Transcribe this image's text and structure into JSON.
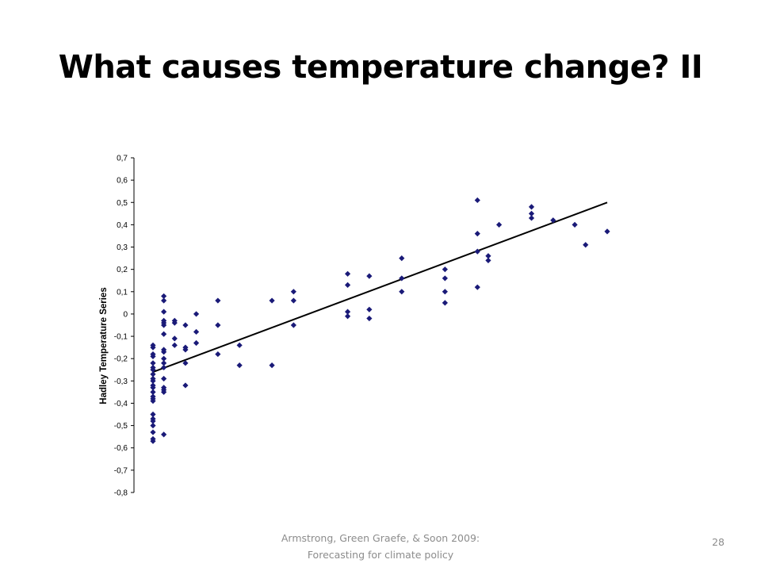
{
  "slide": {
    "title": "What causes temperature change? II",
    "footer_line1": "Armstrong, Green Graefe, & Soon 2009:",
    "footer_line2": "Forecasting for climate policy",
    "page_number": "28"
  },
  "chart_data": {
    "type": "scatter",
    "title": "",
    "xlabel": "",
    "ylabel": "Hadley Temperature Series",
    "ylim": [
      -0.8,
      0.7
    ],
    "yticks": [
      "0,7",
      "0,6",
      "0,5",
      "0,4",
      "0,3",
      "0,2",
      "0,1",
      "0",
      "-0,1",
      "-0,2",
      "-0,3",
      "-0,4",
      "-0,5",
      "-0,6",
      "-0,7",
      "-0,8"
    ],
    "grid": false,
    "legend": "none",
    "marker": "diamond",
    "marker_color": "#1a1a78",
    "trendline": {
      "x": [
        0,
        21
      ],
      "y": [
        -0.26,
        0.5
      ],
      "color": "#000000"
    },
    "points": [
      {
        "x": 0,
        "y": -0.14
      },
      {
        "x": 0,
        "y": -0.15
      },
      {
        "x": 0,
        "y": -0.18
      },
      {
        "x": 0,
        "y": -0.19
      },
      {
        "x": 0,
        "y": -0.22
      },
      {
        "x": 0,
        "y": -0.24
      },
      {
        "x": 0,
        "y": -0.25
      },
      {
        "x": 0,
        "y": -0.27
      },
      {
        "x": 0,
        "y": -0.29
      },
      {
        "x": 0,
        "y": -0.3
      },
      {
        "x": 0,
        "y": -0.32
      },
      {
        "x": 0,
        "y": -0.33
      },
      {
        "x": 0,
        "y": -0.35
      },
      {
        "x": 0,
        "y": -0.37
      },
      {
        "x": 0,
        "y": -0.38
      },
      {
        "x": 0,
        "y": -0.39
      },
      {
        "x": 0,
        "y": -0.45
      },
      {
        "x": 0,
        "y": -0.47
      },
      {
        "x": 0,
        "y": -0.48
      },
      {
        "x": 0,
        "y": -0.5
      },
      {
        "x": 0,
        "y": -0.53
      },
      {
        "x": 0,
        "y": -0.56
      },
      {
        "x": 0,
        "y": -0.57
      },
      {
        "x": 0.5,
        "y": 0.08
      },
      {
        "x": 0.5,
        "y": 0.06
      },
      {
        "x": 0.5,
        "y": 0.01
      },
      {
        "x": 0.5,
        "y": -0.03
      },
      {
        "x": 0.5,
        "y": -0.04
      },
      {
        "x": 0.5,
        "y": -0.05
      },
      {
        "x": 0.5,
        "y": -0.09
      },
      {
        "x": 0.5,
        "y": -0.16
      },
      {
        "x": 0.5,
        "y": -0.17
      },
      {
        "x": 0.5,
        "y": -0.2
      },
      {
        "x": 0.5,
        "y": -0.22
      },
      {
        "x": 0.5,
        "y": -0.24
      },
      {
        "x": 0.5,
        "y": -0.29
      },
      {
        "x": 0.5,
        "y": -0.33
      },
      {
        "x": 0.5,
        "y": -0.34
      },
      {
        "x": 0.5,
        "y": -0.35
      },
      {
        "x": 0.5,
        "y": -0.54
      },
      {
        "x": 1,
        "y": -0.03
      },
      {
        "x": 1,
        "y": -0.04
      },
      {
        "x": 1,
        "y": -0.11
      },
      {
        "x": 1,
        "y": -0.14
      },
      {
        "x": 1.5,
        "y": -0.05
      },
      {
        "x": 1.5,
        "y": -0.15
      },
      {
        "x": 1.5,
        "y": -0.16
      },
      {
        "x": 1.5,
        "y": -0.22
      },
      {
        "x": 1.5,
        "y": -0.32
      },
      {
        "x": 2,
        "y": 0.0
      },
      {
        "x": 2,
        "y": -0.08
      },
      {
        "x": 2,
        "y": -0.13
      },
      {
        "x": 3,
        "y": 0.06
      },
      {
        "x": 3,
        "y": -0.05
      },
      {
        "x": 3,
        "y": -0.18
      },
      {
        "x": 4,
        "y": -0.14
      },
      {
        "x": 4,
        "y": -0.23
      },
      {
        "x": 5.5,
        "y": 0.06
      },
      {
        "x": 5.5,
        "y": -0.23
      },
      {
        "x": 6.5,
        "y": 0.1
      },
      {
        "x": 6.5,
        "y": 0.06
      },
      {
        "x": 6.5,
        "y": -0.05
      },
      {
        "x": 9,
        "y": 0.18
      },
      {
        "x": 9,
        "y": 0.13
      },
      {
        "x": 9,
        "y": 0.01
      },
      {
        "x": 9,
        "y": -0.01
      },
      {
        "x": 10,
        "y": 0.17
      },
      {
        "x": 10,
        "y": 0.02
      },
      {
        "x": 10,
        "y": -0.02
      },
      {
        "x": 11.5,
        "y": 0.25
      },
      {
        "x": 11.5,
        "y": 0.16
      },
      {
        "x": 11.5,
        "y": 0.1
      },
      {
        "x": 13.5,
        "y": 0.2
      },
      {
        "x": 13.5,
        "y": 0.16
      },
      {
        "x": 13.5,
        "y": 0.1
      },
      {
        "x": 13.5,
        "y": 0.05
      },
      {
        "x": 15,
        "y": 0.51
      },
      {
        "x": 15,
        "y": 0.36
      },
      {
        "x": 15,
        "y": 0.28
      },
      {
        "x": 15,
        "y": 0.12
      },
      {
        "x": 15.5,
        "y": 0.26
      },
      {
        "x": 15.5,
        "y": 0.24
      },
      {
        "x": 16,
        "y": 0.4
      },
      {
        "x": 17.5,
        "y": 0.48
      },
      {
        "x": 17.5,
        "y": 0.45
      },
      {
        "x": 17.5,
        "y": 0.43
      },
      {
        "x": 18.5,
        "y": 0.42
      },
      {
        "x": 19.5,
        "y": 0.4
      },
      {
        "x": 20,
        "y": 0.31
      },
      {
        "x": 21,
        "y": 0.37
      }
    ]
  }
}
